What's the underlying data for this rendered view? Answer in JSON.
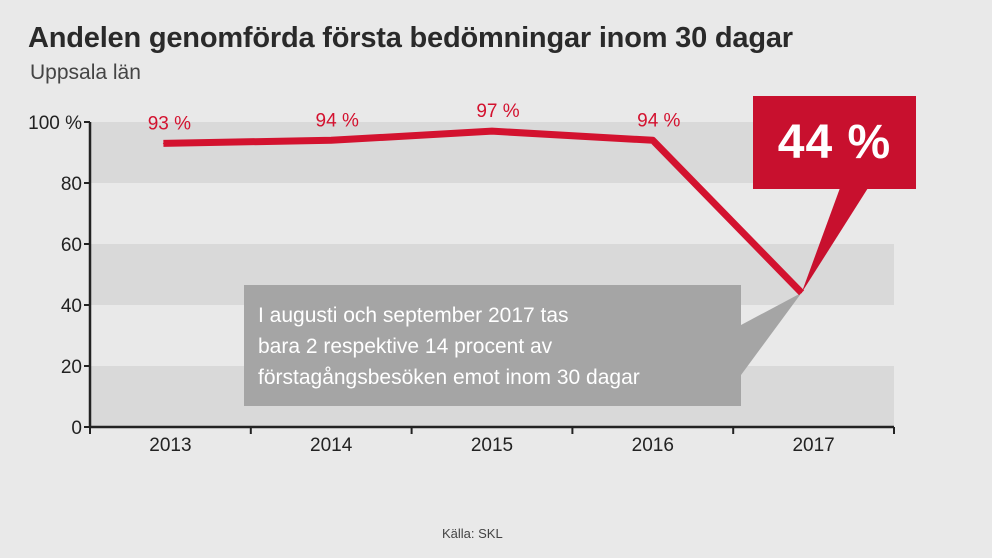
{
  "header": {
    "title": "Andelen genomförda första bedömningar inom 30 dagar",
    "subtitle": "Uppsala län"
  },
  "source": "Källa: SKL",
  "annotation": {
    "lines": [
      "I augusti och september 2017 tas",
      "bara 2 respektive 14 procent av",
      "förstagångsbesöken emot inom 30 dagar"
    ]
  },
  "highlight": {
    "label": "44 %"
  },
  "colors": {
    "line": "#d3122f",
    "highlight_box": "#c8102e",
    "annotation_box": "#a5a5a5",
    "band_dark": "#d9d9d9",
    "background": "#e9e9e9",
    "axis": "#222222"
  },
  "chart_data": {
    "type": "line",
    "title": "Andelen genomförda första bedömningar inom 30 dagar",
    "subtitle": "Uppsala län",
    "categories": [
      "2013",
      "2014",
      "2015",
      "2016",
      "2017"
    ],
    "series": [
      {
        "values": [
          93,
          94,
          97,
          94,
          44
        ]
      }
    ],
    "data_labels": [
      "93 %",
      "94 %",
      "97 %",
      "94 %",
      "44 %"
    ],
    "y_ticks": [
      "0",
      "20",
      "40",
      "60",
      "80",
      "100 %"
    ],
    "ylim": [
      0,
      100
    ],
    "grid": "alternating horizontal bands",
    "legend": "none"
  }
}
